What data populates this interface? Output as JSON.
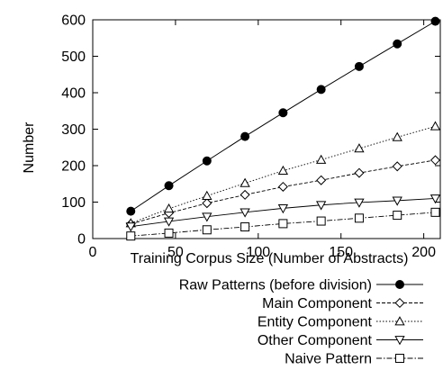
{
  "chart_data": {
    "type": "line",
    "title": "",
    "xlabel": "Training Corpus Size (Number of Abstracts)",
    "ylabel": "Number",
    "xlim": [
      0,
      210
    ],
    "ylim": [
      0,
      600
    ],
    "xticks": [
      0,
      50,
      100,
      150,
      200
    ],
    "yticks": [
      0,
      100,
      200,
      300,
      400,
      500,
      600
    ],
    "grid": false,
    "legend_position": "bottom-right, below plot",
    "x": [
      23,
      46,
      69,
      92,
      115,
      138,
      161,
      184,
      207
    ],
    "series": [
      {
        "name": "Raw Patterns (before division)",
        "marker": "filled-circle",
        "line": "solid",
        "values": [
          75,
          145,
          213,
          280,
          345,
          409,
          472,
          534,
          596
        ]
      },
      {
        "name": "Main Component",
        "marker": "diamond",
        "line": "dashed",
        "values": [
          40,
          70,
          97,
          120,
          142,
          160,
          180,
          198,
          215
        ]
      },
      {
        "name": "Entity Component",
        "marker": "triangle-up",
        "line": "dotted",
        "values": [
          42,
          82,
          117,
          152,
          186,
          216,
          247,
          278,
          308
        ]
      },
      {
        "name": "Other Component",
        "marker": "triangle-down",
        "line": "solid-thin",
        "values": [
          33,
          47,
          60,
          72,
          83,
          92,
          99,
          104,
          110
        ]
      },
      {
        "name": "Naive Pattern",
        "marker": "square",
        "line": "dash-dot",
        "values": [
          7,
          15,
          24,
          32,
          41,
          48,
          56,
          64,
          72
        ]
      }
    ]
  }
}
